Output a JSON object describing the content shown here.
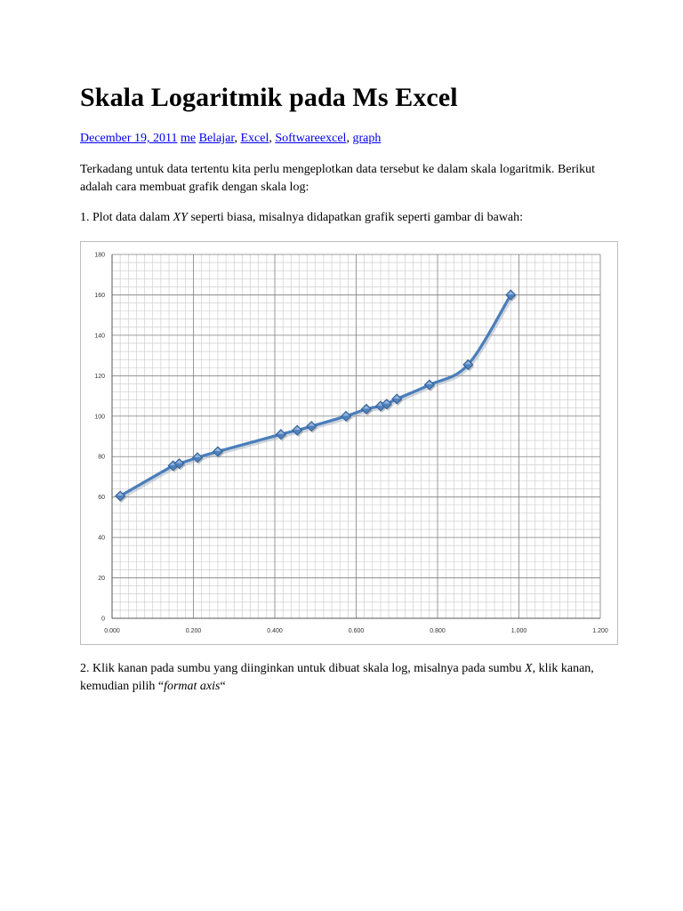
{
  "article": {
    "title": "Skala Logaritmik pada Ms Excel",
    "date": "December 19, 2011",
    "author": "me",
    "categories": [
      "Belajar",
      "Excel",
      "Softwareexcel",
      "graph"
    ],
    "intro": "Terkadang untuk data tertentu kita perlu mengeplotkan data tersebut ke dalam skala logaritmik. Berikut adalah cara membuat grafik dengan skala log:",
    "step1_before": "1. Plot data dalam ",
    "step1_em": "XY",
    "step1_after": " seperti biasa, misalnya didapatkan grafik seperti gambar di bawah:",
    "step2_before": "2. Klik kanan pada sumbu yang diinginkan untuk dibuat skala log, misalnya pada sumbu ",
    "step2_em1": "X",
    "step2_middle": ", klik kanan, kemudian pilih “",
    "step2_em2": "format axis",
    "step2_after": "“"
  },
  "chart_data": {
    "type": "scatter",
    "title": "",
    "xlabel": "",
    "ylabel": "",
    "xlim": [
      0,
      1.2
    ],
    "ylim": [
      0,
      180
    ],
    "x_ticks": [
      "0.000",
      "0.200",
      "0.400",
      "0.600",
      "0.800",
      "1.000",
      "1.200"
    ],
    "y_ticks": [
      "0",
      "20",
      "40",
      "60",
      "80",
      "100",
      "120",
      "140",
      "160",
      "180"
    ],
    "grid": true,
    "minor_grid": true,
    "line_color": "#4a7ebb",
    "marker_color": "#4f81bd",
    "marker": "diamond",
    "series": [
      {
        "x": [
          0.02,
          0.15,
          0.165,
          0.21,
          0.26,
          0.415,
          0.455,
          0.49,
          0.575,
          0.625,
          0.66,
          0.675,
          0.7,
          0.78,
          0.875,
          0.98
        ],
        "y": [
          60.5,
          75.5,
          76.5,
          79.5,
          82.5,
          91,
          93,
          95,
          100,
          103.5,
          105,
          106,
          108.5,
          115.5,
          125.5,
          160
        ]
      }
    ]
  }
}
